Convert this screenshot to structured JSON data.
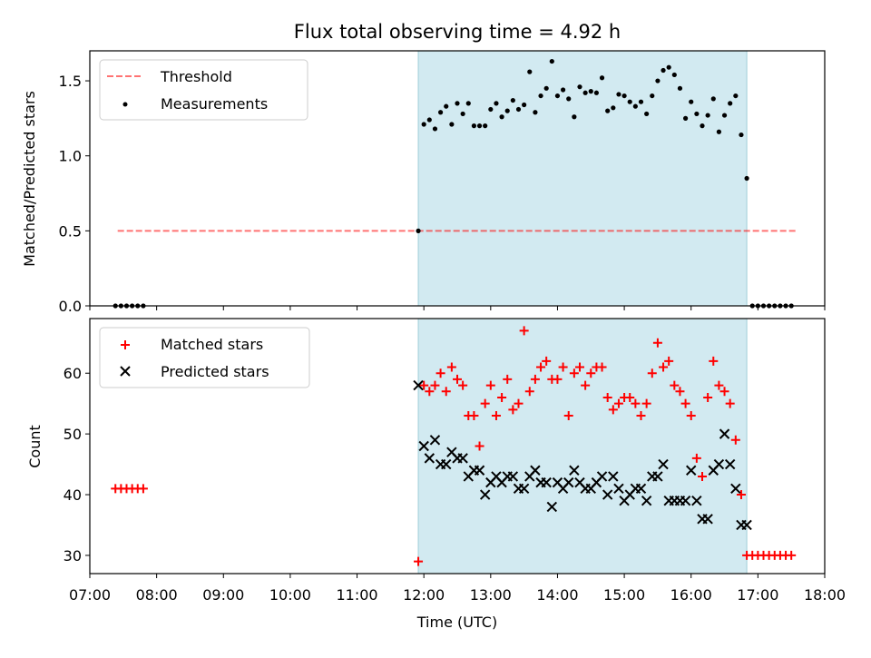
{
  "chart_data": [
    {
      "type": "scatter",
      "title": "Flux total observing time = 4.92 h",
      "ylabel": "Matched/Predicted stars",
      "xlabel": "",
      "xlim": [
        "07:00",
        "18:00"
      ],
      "ylim": [
        0,
        1.7
      ],
      "yticks": [
        "0.0",
        "0.5",
        "1.0",
        "1.5"
      ],
      "shaded_interval": [
        "11:55",
        "16:50"
      ],
      "shade_color": "#add8e6",
      "legend_position": "top-left",
      "threshold": {
        "name": "Threshold",
        "value": 0.5,
        "x": [
          "07:25",
          "17:35"
        ],
        "color": "#ff0000",
        "style": "dashed"
      },
      "series": [
        {
          "name": "Measurements",
          "color": "#000000",
          "marker": "dot",
          "x": [
            "07:23",
            "07:28",
            "07:33",
            "07:38",
            "07:43",
            "07:48",
            "11:55",
            "12:00",
            "12:05",
            "12:10",
            "12:15",
            "12:20",
            "12:25",
            "12:30",
            "12:35",
            "12:40",
            "12:45",
            "12:50",
            "12:55",
            "13:00",
            "13:05",
            "13:10",
            "13:15",
            "13:20",
            "13:25",
            "13:30",
            "13:35",
            "13:40",
            "13:45",
            "13:50",
            "13:55",
            "14:00",
            "14:05",
            "14:10",
            "14:15",
            "14:20",
            "14:25",
            "14:30",
            "14:35",
            "14:40",
            "14:45",
            "14:50",
            "14:55",
            "15:00",
            "15:05",
            "15:10",
            "15:15",
            "15:20",
            "15:25",
            "15:30",
            "15:35",
            "15:40",
            "15:45",
            "15:50",
            "15:55",
            "16:00",
            "16:05",
            "16:10",
            "16:15",
            "16:20",
            "16:25",
            "16:30",
            "16:35",
            "16:40",
            "16:45",
            "16:50",
            "16:55",
            "17:00",
            "17:05",
            "17:10",
            "17:15",
            "17:20",
            "17:25",
            "17:30"
          ],
          "y": [
            0,
            0,
            0,
            0,
            0,
            0,
            0.5,
            1.21,
            1.24,
            1.18,
            1.29,
            1.33,
            1.21,
            1.35,
            1.28,
            1.35,
            1.2,
            1.2,
            1.2,
            1.31,
            1.35,
            1.26,
            1.3,
            1.37,
            1.31,
            1.34,
            1.56,
            1.29,
            1.4,
            1.45,
            1.63,
            1.4,
            1.44,
            1.38,
            1.26,
            1.46,
            1.42,
            1.43,
            1.42,
            1.52,
            1.3,
            1.32,
            1.41,
            1.4,
            1.36,
            1.33,
            1.36,
            1.28,
            1.4,
            1.5,
            1.57,
            1.59,
            1.54,
            1.45,
            1.25,
            1.36,
            1.28,
            1.2,
            1.27,
            1.38,
            1.16,
            1.27,
            1.35,
            1.4,
            1.14,
            0.85,
            0,
            0,
            0,
            0,
            0,
            0,
            0,
            0
          ]
        }
      ]
    },
    {
      "type": "scatter",
      "title": "",
      "ylabel": "Count",
      "xlabel": "Time (UTC)",
      "xlim": [
        "07:00",
        "18:00"
      ],
      "xticks": [
        "07:00",
        "08:00",
        "09:00",
        "10:00",
        "11:00",
        "12:00",
        "13:00",
        "14:00",
        "15:00",
        "16:00",
        "17:00",
        "18:00"
      ],
      "ylim": [
        27,
        69
      ],
      "yticks": [
        "30",
        "40",
        "50",
        "60"
      ],
      "shaded_interval": [
        "11:55",
        "16:50"
      ],
      "shade_color": "#add8e6",
      "legend_position": "top-left",
      "series": [
        {
          "name": "Matched stars",
          "color": "#ff0000",
          "marker": "plus",
          "x": [
            "07:23",
            "07:28",
            "07:33",
            "07:38",
            "07:43",
            "07:48",
            "11:55",
            "12:00",
            "12:05",
            "12:10",
            "12:15",
            "12:20",
            "12:25",
            "12:30",
            "12:35",
            "12:40",
            "12:45",
            "12:50",
            "12:55",
            "13:00",
            "13:05",
            "13:10",
            "13:15",
            "13:20",
            "13:25",
            "13:30",
            "13:35",
            "13:40",
            "13:45",
            "13:50",
            "13:55",
            "14:00",
            "14:05",
            "14:10",
            "14:15",
            "14:20",
            "14:25",
            "14:30",
            "14:35",
            "14:40",
            "14:45",
            "14:50",
            "14:55",
            "15:00",
            "15:05",
            "15:10",
            "15:15",
            "15:20",
            "15:25",
            "15:30",
            "15:35",
            "15:40",
            "15:45",
            "15:50",
            "15:55",
            "16:00",
            "16:05",
            "16:10",
            "16:15",
            "16:20",
            "16:25",
            "16:30",
            "16:35",
            "16:40",
            "16:45",
            "16:50",
            "16:55",
            "17:00",
            "17:05",
            "17:10",
            "17:15",
            "17:20",
            "17:25",
            "17:30"
          ],
          "y": [
            41,
            41,
            41,
            41,
            41,
            41,
            29,
            58,
            57,
            58,
            60,
            57,
            61,
            59,
            58,
            53,
            53,
            48,
            55,
            58,
            53,
            56,
            59,
            54,
            55,
            67,
            57,
            59,
            61,
            62,
            59,
            59,
            61,
            53,
            60,
            61,
            58,
            60,
            61,
            61,
            56,
            54,
            55,
            56,
            56,
            55,
            53,
            55,
            60,
            65,
            61,
            62,
            58,
            57,
            55,
            53,
            46,
            43,
            56,
            62,
            58,
            57,
            55,
            49,
            40,
            30,
            30,
            30,
            30,
            30,
            30,
            30,
            30,
            30
          ]
        },
        {
          "name": "Predicted stars",
          "color": "#000000",
          "marker": "x",
          "x": [
            "11:55",
            "12:00",
            "12:05",
            "12:10",
            "12:15",
            "12:20",
            "12:25",
            "12:30",
            "12:35",
            "12:40",
            "12:45",
            "12:50",
            "12:55",
            "13:00",
            "13:05",
            "13:10",
            "13:15",
            "13:20",
            "13:25",
            "13:30",
            "13:35",
            "13:40",
            "13:45",
            "13:50",
            "13:55",
            "14:00",
            "14:05",
            "14:10",
            "14:15",
            "14:20",
            "14:25",
            "14:30",
            "14:35",
            "14:40",
            "14:45",
            "14:50",
            "14:55",
            "15:00",
            "15:05",
            "15:10",
            "15:15",
            "15:20",
            "15:25",
            "15:30",
            "15:35",
            "15:40",
            "15:45",
            "15:50",
            "15:55",
            "16:00",
            "16:05",
            "16:10",
            "16:15",
            "16:20",
            "16:25",
            "16:30",
            "16:35",
            "16:40",
            "16:45",
            "16:50"
          ],
          "y": [
            58,
            48,
            46,
            49,
            45,
            45,
            47,
            46,
            46,
            43,
            44,
            44,
            40,
            42,
            43,
            42,
            43,
            43,
            41,
            41,
            43,
            44,
            42,
            42,
            38,
            42,
            41,
            42,
            44,
            42,
            41,
            41,
            42,
            43,
            40,
            43,
            41,
            39,
            40,
            41,
            41,
            39,
            43,
            43,
            45,
            39,
            39,
            39,
            39,
            44,
            39,
            36,
            36,
            44,
            45,
            50,
            45,
            41,
            35,
            35
          ]
        }
      ]
    }
  ]
}
